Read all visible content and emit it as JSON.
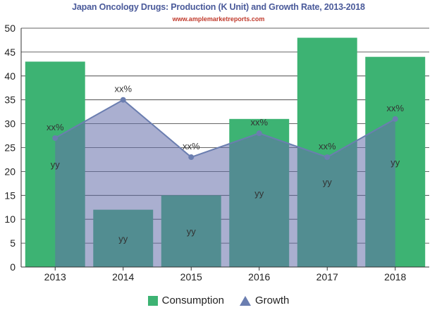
{
  "header": {
    "title": "Japan Oncology Drugs: Production (K Unit) and Growth Rate, 2013-2018",
    "subtitle": "www.amplemarketreports.com"
  },
  "legend": {
    "consumption": "Consumption",
    "growth": "Growth"
  },
  "chart_data": {
    "type": "bar",
    "title": "Japan Oncology Drugs: Production (K Unit) and Growth Rate, 2013-2018",
    "xlabel": "",
    "ylabel": "",
    "categories": [
      "2013",
      "2014",
      "2015",
      "2016",
      "2017",
      "2018"
    ],
    "ylim": [
      0,
      50
    ],
    "yticks": [
      0,
      5,
      10,
      15,
      20,
      25,
      30,
      35,
      40,
      45,
      50
    ],
    "grid": true,
    "legend_position": "bottom",
    "series": [
      {
        "name": "Consumption",
        "type": "bar",
        "color": "#3db373",
        "values": [
          43,
          12,
          15,
          31,
          48,
          44
        ],
        "data_labels": [
          "yy",
          "yy",
          "yy",
          "yy",
          "yy",
          "yy"
        ]
      },
      {
        "name": "Growth",
        "type": "area",
        "color": "#6b7eb0",
        "values": [
          27,
          35,
          23,
          28,
          23,
          31
        ],
        "data_labels": [
          "xx%",
          "xx%",
          "xx%",
          "xx%",
          "xx%",
          "xx%"
        ]
      }
    ]
  }
}
